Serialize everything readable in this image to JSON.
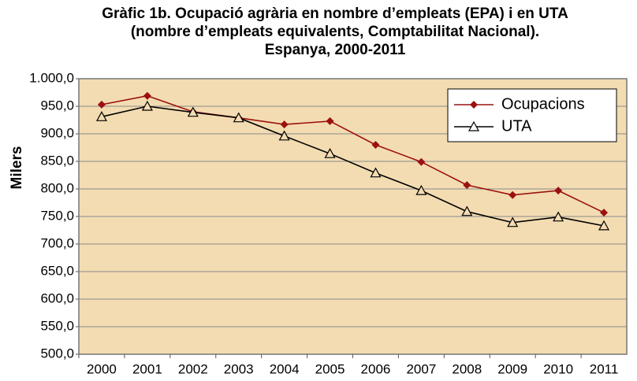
{
  "chart_data": {
    "type": "line",
    "title": [
      "Gràfic 1b. Ocupació agrària en nombre d’empleats (EPA) i en UTA",
      "(nombre d’empleats equivalents, Comptabilitat Nacional).",
      "Espanya, 2000-2011"
    ],
    "y_label": "Milers",
    "categories": [
      "2000",
      "2001",
      "2002",
      "2003",
      "2004",
      "2005",
      "2006",
      "2007",
      "2008",
      "2009",
      "2010",
      "2011"
    ],
    "series": [
      {
        "name": "Ocupacions",
        "color": "#9b1111",
        "marker": "diamond",
        "values": [
          953,
          969,
          940,
          929,
          917,
          923,
          880,
          849,
          807,
          789,
          797,
          757
        ]
      },
      {
        "name": "UTA",
        "color": "#000000",
        "marker": "triangle",
        "values": [
          931,
          950,
          939,
          929,
          896,
          864,
          829,
          797,
          759,
          739,
          749,
          733
        ]
      }
    ],
    "ylim": [
      500,
      1000
    ],
    "yticks": [
      {
        "value": 500,
        "label": "500,0"
      },
      {
        "value": 550,
        "label": "550,0"
      },
      {
        "value": 600,
        "label": "600,0"
      },
      {
        "value": 650,
        "label": "650,0"
      },
      {
        "value": 700,
        "label": "700,0"
      },
      {
        "value": 750,
        "label": "750,0"
      },
      {
        "value": 800,
        "label": "800,0"
      },
      {
        "value": 850,
        "label": "850,0"
      },
      {
        "value": 900,
        "label": "900,0"
      },
      {
        "value": 950,
        "label": "950,0"
      },
      {
        "value": 1000,
        "label": "1.000,0"
      }
    ],
    "grid": true,
    "legend": "top-right",
    "background": "#f3dcb2"
  }
}
